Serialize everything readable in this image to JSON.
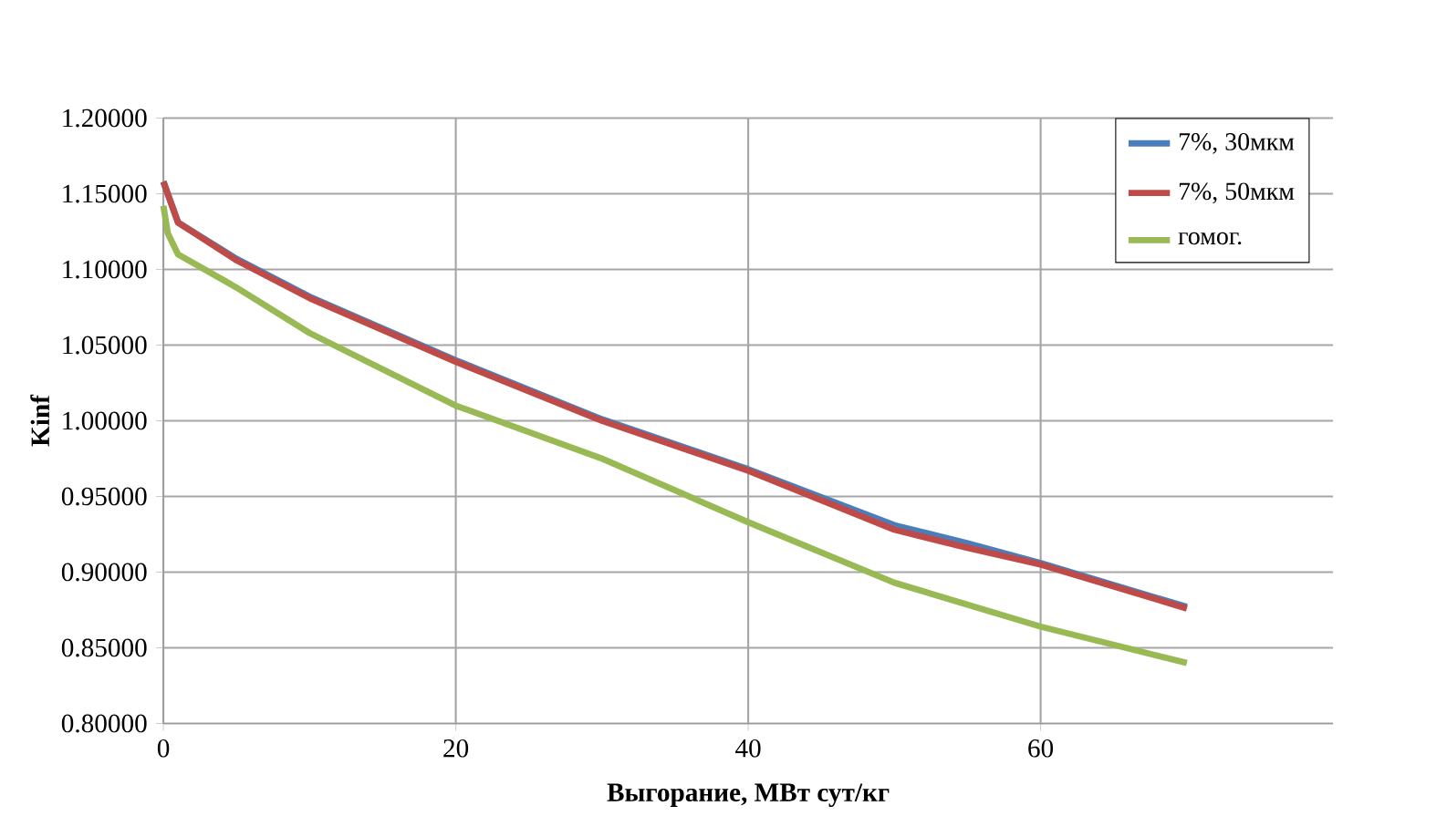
{
  "chart_data": {
    "type": "line",
    "xlabel": "Выгорание,  МВт сут/кг",
    "ylabel": "Kinf",
    "xlim": [
      0,
      80
    ],
    "xticks": [
      0,
      20,
      40,
      60
    ],
    "ylim": [
      0.8,
      1.2
    ],
    "yticks": [
      {
        "value": 0.8,
        "label": "0.80000"
      },
      {
        "value": 0.85,
        "label": "0.85000"
      },
      {
        "value": 0.9,
        "label": "0.90000"
      },
      {
        "value": 0.95,
        "label": "0.95000"
      },
      {
        "value": 1.0,
        "label": "1.00000"
      },
      {
        "value": 1.05,
        "label": "1.05000"
      },
      {
        "value": 1.1,
        "label": "1.10000"
      },
      {
        "value": 1.15,
        "label": "1.15000"
      },
      {
        "value": 1.2,
        "label": "1.20000"
      }
    ],
    "grid": true,
    "legend": "top right",
    "marker": "none",
    "line_style": "solid",
    "series": [
      {
        "name": "7%, 30мкм",
        "color": "#4a7ebb",
        "x": [
          0,
          1,
          5,
          10,
          20,
          30,
          40,
          50,
          55,
          60,
          70
        ],
        "values": [
          1.158,
          1.131,
          1.107,
          1.082,
          1.04,
          1.001,
          0.968,
          0.931,
          0.919,
          0.906,
          0.877
        ]
      },
      {
        "name": "7%, 50мкм",
        "color": "#be4b48",
        "x": [
          0,
          1,
          5,
          10,
          20,
          30,
          40,
          50,
          55,
          60,
          70
        ],
        "values": [
          1.158,
          1.131,
          1.106,
          1.081,
          1.039,
          1.0,
          0.967,
          0.928,
          0.916,
          0.905,
          0.876
        ]
      },
      {
        "name": "гомог.",
        "color": "#98b954",
        "x": [
          0,
          0.3,
          1,
          5,
          10,
          20,
          30,
          40,
          50,
          60,
          70
        ],
        "values": [
          1.142,
          1.124,
          1.11,
          1.088,
          1.058,
          1.01,
          0.975,
          0.933,
          0.893,
          0.864,
          0.84
        ]
      }
    ]
  }
}
